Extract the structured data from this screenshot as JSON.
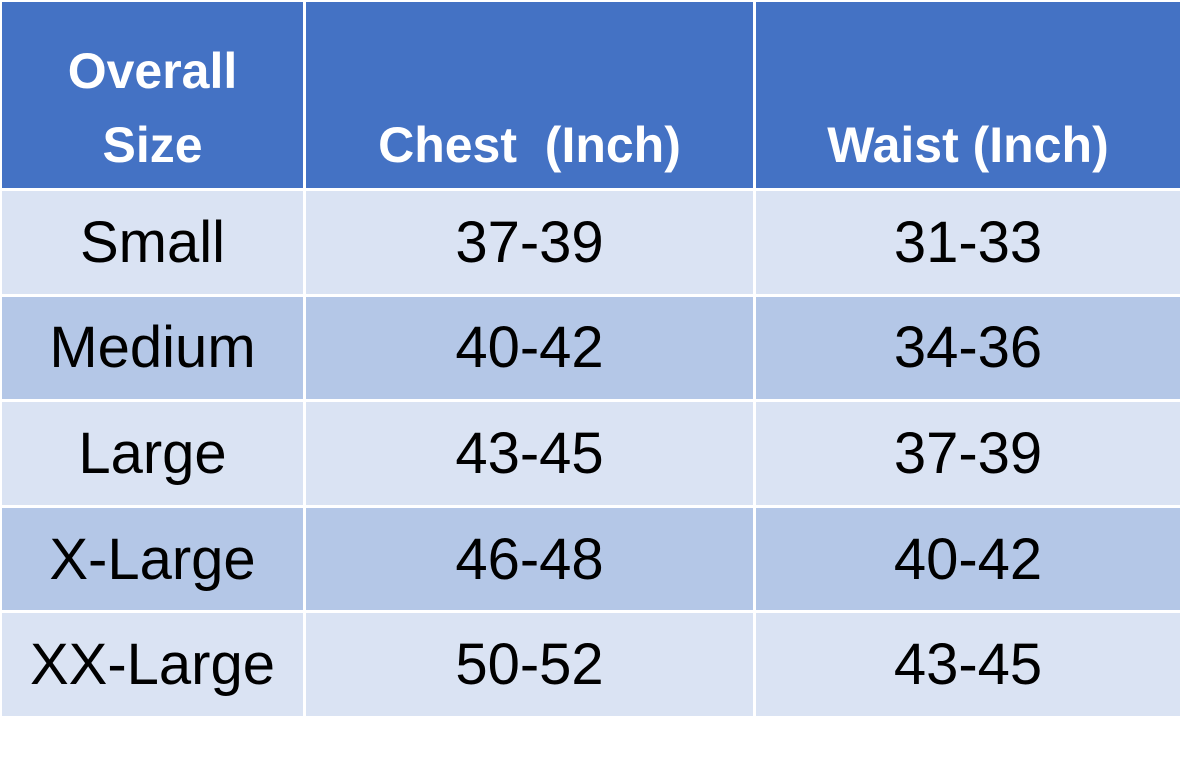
{
  "table": {
    "header": [
      "Overall Size",
      "Chest  (Inch)",
      "Waist (Inch)"
    ],
    "rows": [
      [
        "Small",
        "37-39",
        "31-33"
      ],
      [
        "Medium",
        "40-42",
        "34-36"
      ],
      [
        "Large",
        "43-45",
        "37-39"
      ],
      [
        "X-Large",
        "46-48",
        "40-42"
      ],
      [
        "XX-Large",
        "50-52",
        "43-45"
      ]
    ]
  }
}
